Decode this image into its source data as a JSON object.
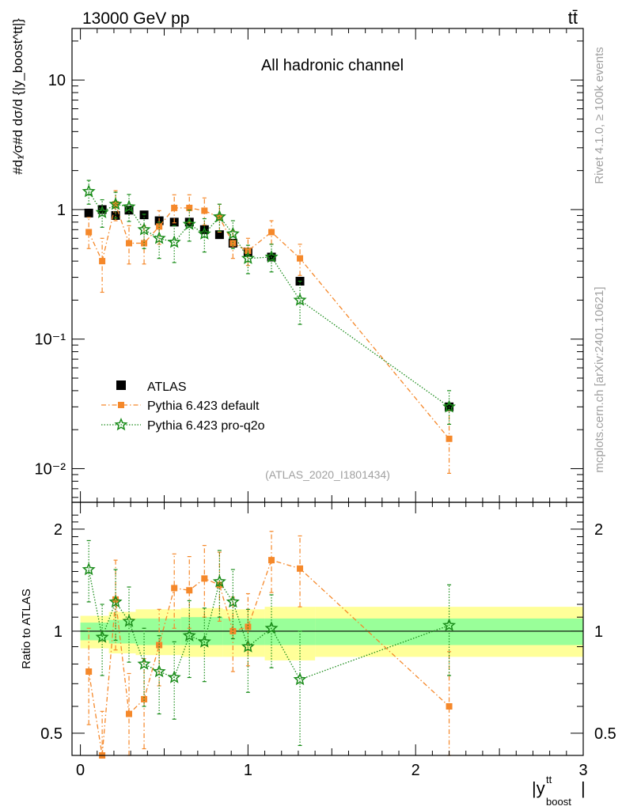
{
  "header": {
    "energy_label": "13000 GeV pp",
    "process_label": "tt̄",
    "rivet_label": "Rivet 4.1.0, ≥ 100k events",
    "source_label": "mcplots.cern.ch [arXiv:2401.10621]",
    "analysis_label": "(ATLAS_2020_I1801434)",
    "channel_label": "All hadronic channel"
  },
  "axis_labels": {
    "y_main": "#d₁⁄σ#d dσ/d {|y_boost^tt|}",
    "y_ratio": "Ratio to ATLAS",
    "x": "|y_boost^tt|",
    "x_symbol": "|y",
    "x_sup": "tt",
    "x_sub": "boost"
  },
  "colors": {
    "atlas": "#000000",
    "pythia_default": "#f5882a",
    "pythia_proq2o": "#1a8c1a",
    "band_inner": "#99ff99",
    "band_outer": "#ffff99"
  },
  "chart_data": [
    {
      "type": "scatter",
      "panel": "main",
      "title": "All hadronic channel",
      "xlabel": "|y_boost^tt|",
      "ylabel": "1/σ dσ/d|y_boost^tt|",
      "yscale": "log",
      "xlim": [
        -0.05,
        3.0
      ],
      "ylim": [
        0.0055,
        25
      ],
      "x_ticks": [
        "0",
        "1",
        "2",
        "3"
      ],
      "y_ticks": [
        {
          "value": 10,
          "label": "10"
        },
        {
          "value": 1,
          "label": "1"
        },
        {
          "value": 0.1,
          "label": "10⁻¹"
        },
        {
          "value": 0.01,
          "label": "10⁻²"
        }
      ],
      "legend_position": "lower-left",
      "series": [
        {
          "name": "ATLAS",
          "marker": "square",
          "x": [
            0.05,
            0.13,
            0.21,
            0.29,
            0.38,
            0.47,
            0.56,
            0.65,
            0.74,
            0.83,
            0.91,
            1.0,
            1.14,
            1.31,
            2.2
          ],
          "values": [
            0.94,
            1.0,
            0.9,
            0.99,
            0.91,
            0.82,
            0.8,
            0.8,
            0.7,
            0.64,
            0.55,
            0.47,
            0.43,
            0.28,
            0.03
          ]
        },
        {
          "name": "Pythia 6.423 default",
          "marker": "filled-square",
          "x": [
            0.05,
            0.13,
            0.21,
            0.29,
            0.38,
            0.47,
            0.56,
            0.65,
            0.74,
            0.83,
            0.91,
            1.0,
            1.14,
            1.31,
            2.2
          ],
          "values": [
            0.67,
            0.4,
            1.1,
            0.55,
            0.55,
            0.74,
            1.03,
            1.03,
            0.98,
            0.87,
            0.55,
            0.48,
            0.67,
            0.42,
            0.017
          ],
          "err_lo": [
            0.17,
            0.17,
            0.28,
            0.17,
            0.17,
            0.2,
            0.24,
            0.24,
            0.22,
            0.2,
            0.13,
            0.11,
            0.13,
            0.11,
            0.0078
          ],
          "err_hi": [
            0.2,
            0.2,
            0.3,
            0.2,
            0.2,
            0.24,
            0.27,
            0.27,
            0.25,
            0.23,
            0.14,
            0.12,
            0.15,
            0.12,
            0.0112
          ]
        },
        {
          "name": "Pythia 6.423 pro-q2o",
          "marker": "star",
          "x": [
            0.05,
            0.13,
            0.21,
            0.29,
            0.38,
            0.47,
            0.56,
            0.65,
            0.74,
            0.83,
            0.91,
            1.0,
            1.14,
            1.31,
            2.2
          ],
          "values": [
            1.38,
            0.95,
            1.1,
            1.05,
            0.7,
            0.6,
            0.56,
            0.77,
            0.65,
            0.88,
            0.65,
            0.42,
            0.43,
            0.2,
            0.03
          ],
          "err_lo": [
            0.28,
            0.22,
            0.24,
            0.24,
            0.2,
            0.18,
            0.17,
            0.2,
            0.18,
            0.2,
            0.15,
            0.1,
            0.1,
            0.07,
            0.008
          ],
          "err_hi": [
            0.3,
            0.24,
            0.26,
            0.26,
            0.22,
            0.2,
            0.19,
            0.22,
            0.2,
            0.22,
            0.17,
            0.11,
            0.11,
            0.08,
            0.01
          ]
        }
      ]
    },
    {
      "type": "scatter",
      "panel": "ratio",
      "ylabel": "Ratio to ATLAS",
      "xlabel": "|y_boost^tt|",
      "yscale": "log",
      "xlim": [
        -0.05,
        3.0
      ],
      "ylim": [
        0.43,
        2.4
      ],
      "x_ticks": [
        "0",
        "1",
        "2",
        "3"
      ],
      "y_ticks": [
        {
          "value": 2,
          "label": "2"
        },
        {
          "value": 1,
          "label": "1"
        },
        {
          "value": 0.5,
          "label": "0.5"
        }
      ],
      "reference_line": 1,
      "bins": [
        {
          "x_low": 0.0,
          "x_high": 0.17,
          "inner": [
            0.94,
            1.06
          ],
          "outer": [
            0.89,
            1.11
          ]
        },
        {
          "x_low": 0.17,
          "x_high": 0.33,
          "inner": [
            0.92,
            1.08
          ],
          "outer": [
            0.86,
            1.14
          ]
        },
        {
          "x_low": 0.33,
          "x_high": 0.6,
          "inner": [
            0.91,
            1.09
          ],
          "outer": [
            0.85,
            1.16
          ]
        },
        {
          "x_low": 0.6,
          "x_high": 0.85,
          "inner": [
            0.91,
            1.1
          ],
          "outer": [
            0.84,
            1.17
          ]
        },
        {
          "x_low": 0.85,
          "x_high": 1.1,
          "inner": [
            0.91,
            1.09
          ],
          "outer": [
            0.84,
            1.16
          ]
        },
        {
          "x_low": 1.1,
          "x_high": 1.4,
          "inner": [
            0.91,
            1.09
          ],
          "outer": [
            0.82,
            1.18
          ]
        },
        {
          "x_low": 1.4,
          "x_high": 3.0,
          "inner": [
            0.91,
            1.09
          ],
          "outer": [
            0.84,
            1.18
          ]
        }
      ],
      "series": [
        {
          "name": "Pythia 6.423 default",
          "x": [
            0.05,
            0.13,
            0.21,
            0.29,
            0.38,
            0.47,
            0.56,
            0.65,
            0.74,
            0.83,
            0.91,
            1.0,
            1.14,
            1.31,
            2.2
          ],
          "values": [
            0.76,
            0.4,
            1.24,
            0.57,
            0.63,
            0.91,
            1.34,
            1.32,
            1.43,
            1.37,
            1.0,
            1.03,
            1.62,
            1.53,
            0.6
          ],
          "err_lo": [
            0.23,
            0.15,
            0.36,
            0.15,
            0.18,
            0.22,
            0.32,
            0.3,
            0.33,
            0.3,
            0.24,
            0.24,
            0.32,
            0.35,
            0.25
          ],
          "err_hi": [
            0.26,
            0.18,
            0.38,
            0.18,
            0.2,
            0.25,
            0.35,
            0.34,
            0.36,
            0.34,
            0.26,
            0.26,
            0.35,
            0.38,
            0.27
          ]
        },
        {
          "name": "Pythia 6.423 pro-q2o",
          "x": [
            0.05,
            0.13,
            0.21,
            0.29,
            0.38,
            0.47,
            0.56,
            0.65,
            0.74,
            0.83,
            0.91,
            1.0,
            1.14,
            1.31,
            2.2
          ],
          "values": [
            1.52,
            0.96,
            1.22,
            1.07,
            0.8,
            0.76,
            0.73,
            0.97,
            0.93,
            1.4,
            1.22,
            0.9,
            1.02,
            0.72,
            1.04
          ],
          "err_lo": [
            0.3,
            0.22,
            0.28,
            0.26,
            0.2,
            0.19,
            0.18,
            0.24,
            0.22,
            0.3,
            0.27,
            0.24,
            0.24,
            0.26,
            0.3
          ],
          "err_hi": [
            0.33,
            0.24,
            0.3,
            0.28,
            0.22,
            0.21,
            0.2,
            0.26,
            0.24,
            0.33,
            0.3,
            0.26,
            0.26,
            0.28,
            0.33
          ]
        }
      ]
    }
  ]
}
